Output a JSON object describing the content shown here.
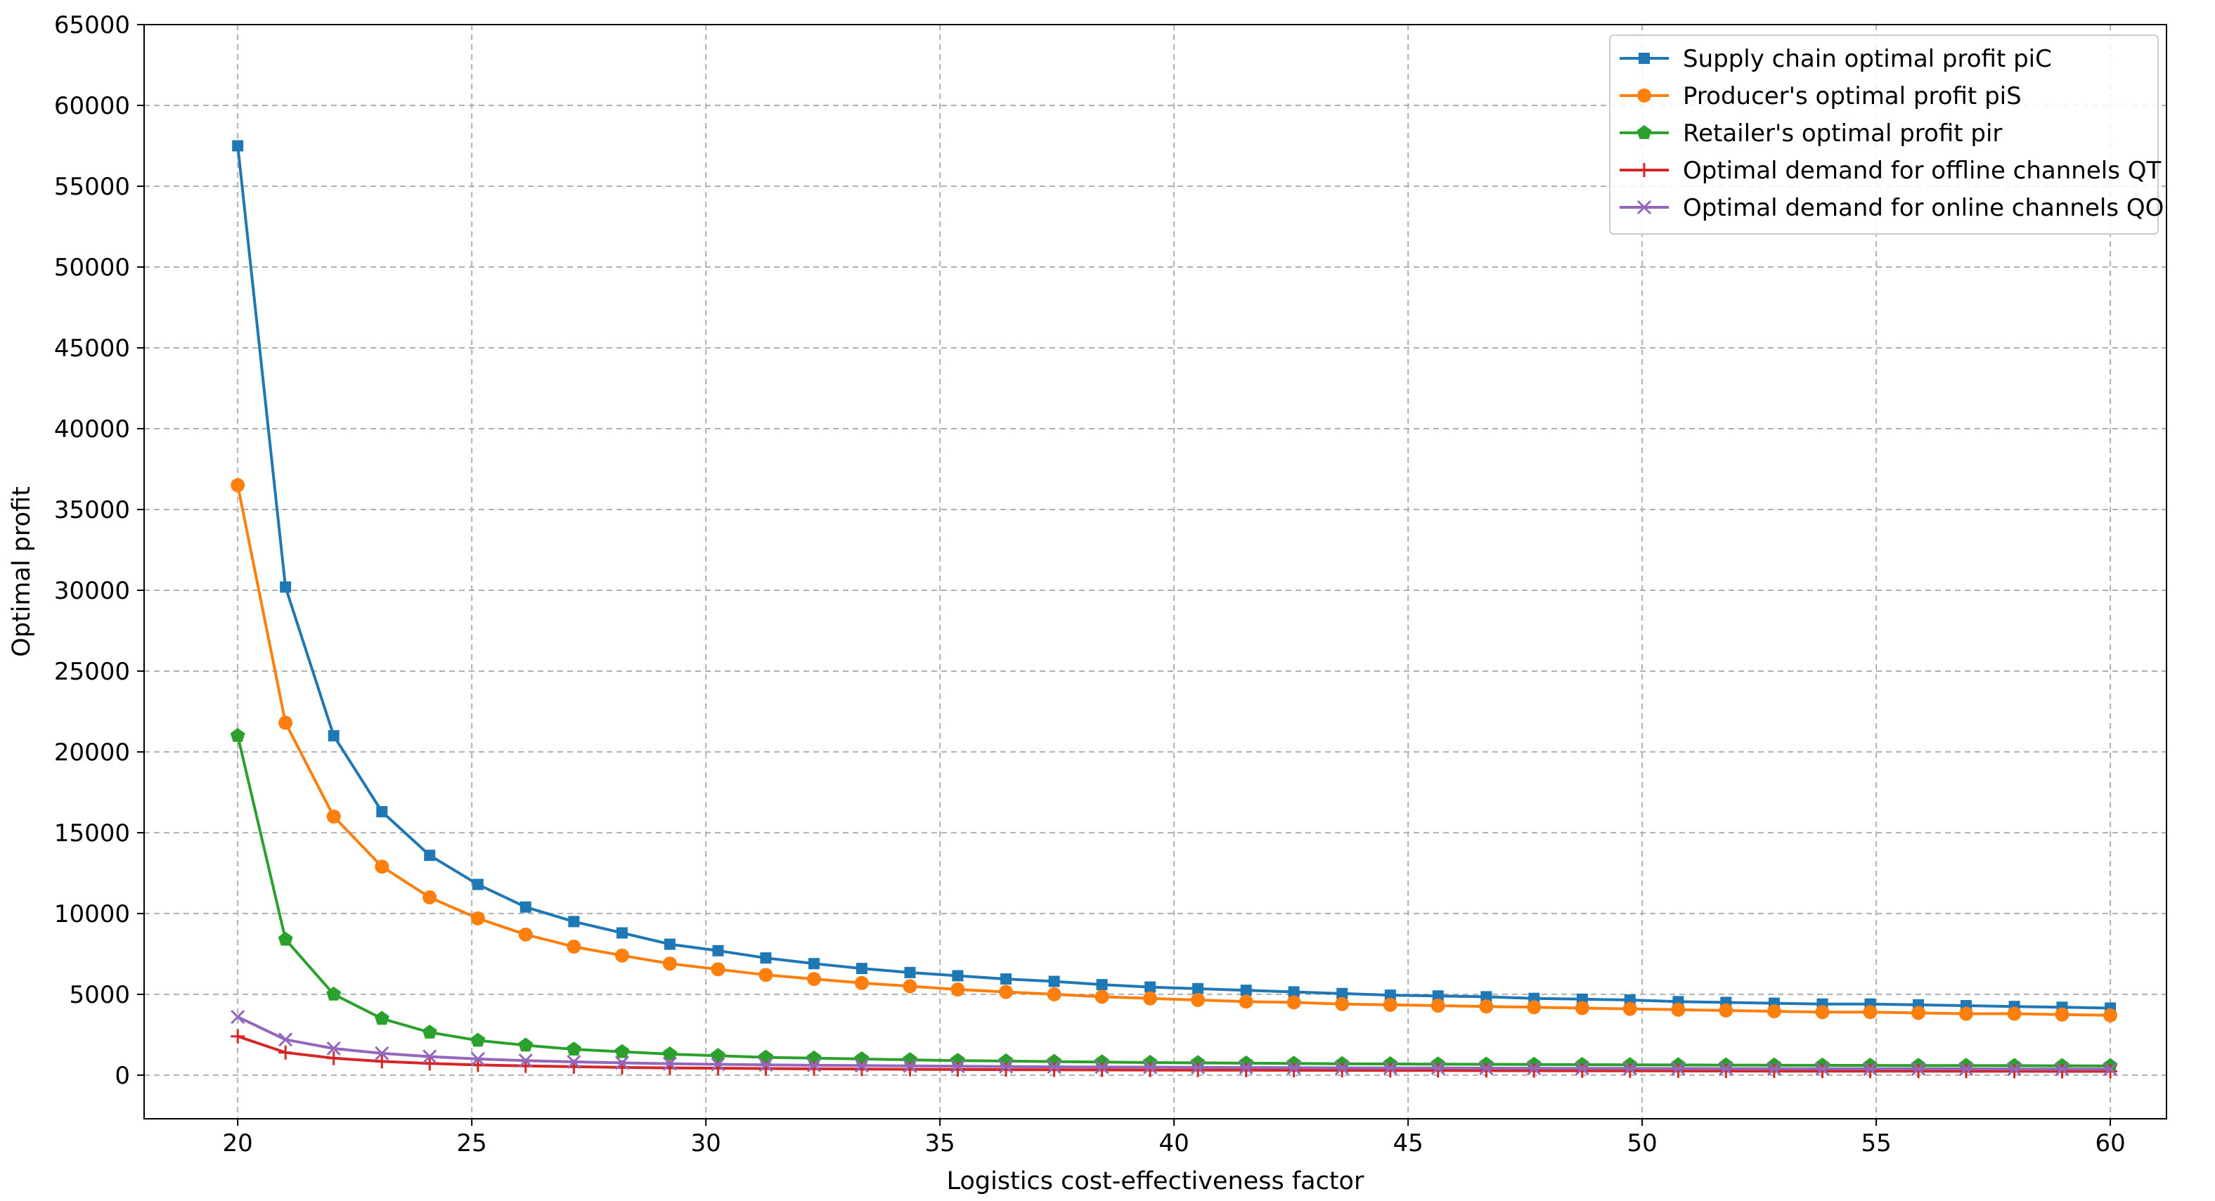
{
  "chart_data": {
    "type": "line",
    "title": "",
    "xlabel": "Logistics cost-effectiveness factor",
    "ylabel": "Optimal profit",
    "xlim": [
      18,
      61.2
    ],
    "ylim": [
      -2700,
      65000
    ],
    "x_ticks": [
      20,
      25,
      30,
      35,
      40,
      45,
      50,
      55,
      60
    ],
    "y_ticks": [
      0,
      5000,
      10000,
      15000,
      20000,
      25000,
      30000,
      35000,
      40000,
      45000,
      50000,
      55000,
      60000,
      65000
    ],
    "grid": true,
    "legend_position": "top-right",
    "x": [
      20,
      21.02,
      22.05,
      23.08,
      24.1,
      25.13,
      26.15,
      27.18,
      28.21,
      29.23,
      30.26,
      31.28,
      32.31,
      33.33,
      34.36,
      35.38,
      36.41,
      37.44,
      38.46,
      39.49,
      40.51,
      41.54,
      42.56,
      43.59,
      44.62,
      45.64,
      46.67,
      47.69,
      48.72,
      49.74,
      50.77,
      51.79,
      52.82,
      53.85,
      54.87,
      55.9,
      56.92,
      57.95,
      58.97,
      60
    ],
    "series": [
      {
        "name": "Supply chain optimal profit piC",
        "color": "#1f77b4",
        "marker": "square",
        "values": [
          57500,
          30200,
          21000,
          16300,
          13600,
          11800,
          10400,
          9500,
          8800,
          8100,
          7700,
          7250,
          6900,
          6600,
          6350,
          6150,
          5950,
          5800,
          5600,
          5450,
          5350,
          5250,
          5150,
          5050,
          4950,
          4900,
          4850,
          4750,
          4700,
          4650,
          4550,
          4500,
          4450,
          4400,
          4400,
          4350,
          4300,
          4250,
          4200,
          4150
        ]
      },
      {
        "name": "Producer's optimal profit piS",
        "color": "#ff7f0e",
        "marker": "circle",
        "values": [
          36500,
          21800,
          16000,
          12900,
          11000,
          9700,
          8700,
          7950,
          7400,
          6900,
          6550,
          6200,
          5950,
          5700,
          5500,
          5300,
          5150,
          5000,
          4850,
          4750,
          4650,
          4550,
          4500,
          4400,
          4350,
          4300,
          4250,
          4200,
          4150,
          4100,
          4050,
          4000,
          3950,
          3900,
          3900,
          3850,
          3800,
          3800,
          3750,
          3700
        ]
      },
      {
        "name": "Retailer's optimal profit pir",
        "color": "#2ca02c",
        "marker": "pentagon",
        "values": [
          21000,
          8400,
          5000,
          3500,
          2650,
          2150,
          1850,
          1600,
          1450,
          1300,
          1200,
          1100,
          1050,
          1000,
          950,
          900,
          870,
          840,
          810,
          780,
          760,
          740,
          720,
          700,
          690,
          680,
          670,
          660,
          650,
          640,
          630,
          620,
          615,
          610,
          600,
          595,
          590,
          585,
          580,
          575
        ]
      },
      {
        "name": "Optimal demand for offline channels QT",
        "color": "#d62728",
        "marker": "plus",
        "values": [
          2400,
          1400,
          1050,
          850,
          720,
          630,
          570,
          520,
          480,
          450,
          430,
          410,
          390,
          375,
          360,
          350,
          340,
          330,
          320,
          315,
          310,
          305,
          300,
          295,
          290,
          285,
          280,
          275,
          270,
          265,
          260,
          255,
          250,
          250,
          245,
          245,
          240,
          240,
          235,
          235
        ]
      },
      {
        "name": "Optimal demand for online channels QO",
        "color": "#9467bd",
        "marker": "x",
        "values": [
          3600,
          2200,
          1650,
          1350,
          1150,
          1000,
          900,
          820,
          760,
          710,
          670,
          640,
          610,
          590,
          570,
          550,
          530,
          515,
          500,
          490,
          480,
          470,
          460,
          450,
          445,
          440,
          430,
          425,
          420,
          415,
          410,
          405,
          400,
          395,
          390,
          390,
          385,
          380,
          380,
          375
        ]
      }
    ]
  }
}
